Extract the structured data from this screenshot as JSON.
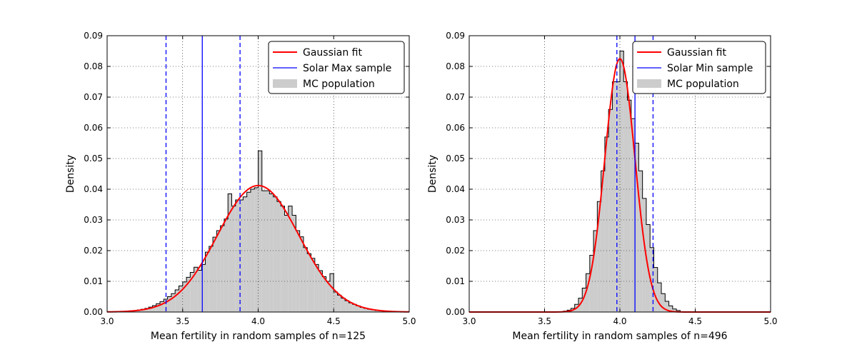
{
  "chart_data": [
    {
      "type": "histogram",
      "xlabel": "Mean fertility in random samples of n=125",
      "ylabel": "Density",
      "xlim": [
        3.0,
        5.0
      ],
      "ylim": [
        0.0,
        0.09
      ],
      "xticks": [
        "3.0",
        "3.5",
        "4.0",
        "4.5",
        "5.0"
      ],
      "yticks": [
        "0.00",
        "0.01",
        "0.02",
        "0.03",
        "0.04",
        "0.05",
        "0.06",
        "0.07",
        "0.08",
        "0.09"
      ],
      "grid": true,
      "legend_position": "top-right",
      "legend": [
        "Gaussian fit",
        "Solar Max sample",
        "MC population"
      ],
      "histogram": {
        "name": "MC population",
        "color": "#cccccc",
        "bin_edges": [
          3.0,
          3.025,
          3.05,
          3.075,
          3.1,
          3.125,
          3.15,
          3.175,
          3.2,
          3.225,
          3.25,
          3.275,
          3.3,
          3.325,
          3.35,
          3.375,
          3.4,
          3.425,
          3.45,
          3.475,
          3.5,
          3.525,
          3.55,
          3.575,
          3.6,
          3.625,
          3.65,
          3.675,
          3.7,
          3.725,
          3.75,
          3.775,
          3.8,
          3.825,
          3.85,
          3.875,
          3.9,
          3.925,
          3.95,
          3.975,
          4.0,
          4.025,
          4.05,
          4.075,
          4.1,
          4.125,
          4.15,
          4.175,
          4.2,
          4.225,
          4.25,
          4.275,
          4.3,
          4.325,
          4.35,
          4.375,
          4.4,
          4.425,
          4.45,
          4.475,
          4.5,
          4.525,
          4.55,
          4.575,
          4.6,
          4.625,
          4.65,
          4.675,
          4.7,
          4.725,
          4.75,
          4.775,
          4.8,
          4.825,
          4.85,
          4.875,
          4.9,
          4.925,
          4.95,
          4.975,
          5.0
        ],
        "densities": [
          0.0,
          0.0,
          0.0,
          0.0,
          0.0002,
          0.0003,
          0.0004,
          0.0005,
          0.0007,
          0.0009,
          0.0012,
          0.0016,
          0.0021,
          0.0027,
          0.0034,
          0.0042,
          0.005,
          0.006,
          0.0072,
          0.0085,
          0.0098,
          0.0113,
          0.0129,
          0.0146,
          0.0136,
          0.0155,
          0.0195,
          0.0214,
          0.0244,
          0.0265,
          0.0281,
          0.0303,
          0.0385,
          0.0345,
          0.0365,
          0.0365,
          0.0375,
          0.039,
          0.04,
          0.0405,
          0.0525,
          0.0395,
          0.0395,
          0.0385,
          0.0375,
          0.036,
          0.0345,
          0.0315,
          0.0345,
          0.0315,
          0.0265,
          0.0245,
          0.021,
          0.019,
          0.0175,
          0.0155,
          0.0135,
          0.0115,
          0.01,
          0.0125,
          0.0065,
          0.0055,
          0.0045,
          0.0037,
          0.003,
          0.0025,
          0.002,
          0.0015,
          0.0012,
          0.0009,
          0.0007,
          0.0005,
          0.0004,
          0.0003,
          0.0002,
          0.0002,
          0.0001,
          0.0,
          0.0,
          0.0
        ]
      },
      "gaussian_fit": {
        "name": "Gaussian fit",
        "mean": 4.0,
        "sigma": 0.27,
        "peak": 0.0412,
        "color": "#ff0000"
      },
      "sample": {
        "name": "Solar Max sample",
        "color": "#0000ff",
        "mean": 3.63,
        "bounds": [
          3.39,
          3.88
        ]
      }
    },
    {
      "type": "histogram",
      "xlabel": "Mean fertility in random samples of n=496",
      "ylabel": "Density",
      "xlim": [
        3.0,
        5.0
      ],
      "ylim": [
        0.0,
        0.09
      ],
      "xticks": [
        "3.0",
        "3.5",
        "4.0",
        "4.5",
        "5.0"
      ],
      "yticks": [
        "0.00",
        "0.01",
        "0.02",
        "0.03",
        "0.04",
        "0.05",
        "0.06",
        "0.07",
        "0.08",
        "0.09"
      ],
      "grid": true,
      "legend_position": "top-right",
      "legend": [
        "Gaussian fit",
        "Solar Min sample",
        "MC population"
      ],
      "histogram": {
        "name": "MC population",
        "color": "#cccccc",
        "bin_edges": [
          3.625,
          3.65,
          3.675,
          3.7,
          3.725,
          3.75,
          3.775,
          3.8,
          3.825,
          3.85,
          3.875,
          3.9,
          3.925,
          3.95,
          3.975,
          4.0,
          4.025,
          4.05,
          4.075,
          4.1,
          4.125,
          4.15,
          4.175,
          4.2,
          4.225,
          4.25,
          4.275,
          4.3,
          4.325,
          4.35,
          4.375,
          4.4
        ],
        "densities": [
          0.0003,
          0.0006,
          0.0012,
          0.0025,
          0.0045,
          0.0078,
          0.0125,
          0.0185,
          0.0265,
          0.036,
          0.046,
          0.057,
          0.066,
          0.075,
          0.075,
          0.085,
          0.075,
          0.069,
          0.063,
          0.055,
          0.046,
          0.037,
          0.0285,
          0.021,
          0.0145,
          0.0095,
          0.006,
          0.0035,
          0.002,
          0.001,
          0.0005
        ]
      },
      "gaussian_fit": {
        "name": "Gaussian fit",
        "mean": 4.0,
        "sigma": 0.1,
        "peak": 0.0825,
        "color": "#ff0000"
      },
      "sample": {
        "name": "Solar Min sample",
        "color": "#0000ff",
        "mean": 4.1,
        "bounds": [
          3.98,
          4.22
        ]
      }
    }
  ]
}
